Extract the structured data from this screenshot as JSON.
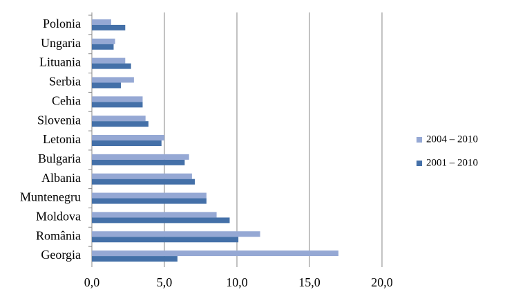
{
  "chart_data": {
    "type": "hbar",
    "categories": [
      "Polonia",
      "Ungaria",
      "Lituania",
      "Serbia",
      "Cehia",
      "Slovenia",
      "Letonia",
      "Bulgaria",
      "Albania",
      "Muntenegru",
      "Moldova",
      "România",
      "Georgia"
    ],
    "series": [
      {
        "name": "2004 – 2010",
        "color": "#95a8d4",
        "values": [
          1.33,
          1.6,
          2.3,
          2.9,
          3.5,
          3.7,
          5.0,
          6.7,
          6.9,
          7.9,
          8.6,
          11.6,
          17.0
        ]
      },
      {
        "name": "2001 – 2010",
        "color": "#4470a8",
        "values": [
          2.3,
          1.5,
          2.7,
          2.0,
          3.5,
          3.9,
          4.8,
          6.4,
          7.1,
          7.9,
          9.5,
          10.1,
          5.9
        ]
      }
    ],
    "xlim": [
      0,
      20
    ],
    "xticks": [
      {
        "value": 0,
        "label": "0,0"
      },
      {
        "value": 5,
        "label": "5,0"
      },
      {
        "value": 10,
        "label": "10,0"
      },
      {
        "value": 15,
        "label": "15,0"
      },
      {
        "value": 20,
        "label": "20,0"
      }
    ],
    "grid": true,
    "legend": "right"
  }
}
